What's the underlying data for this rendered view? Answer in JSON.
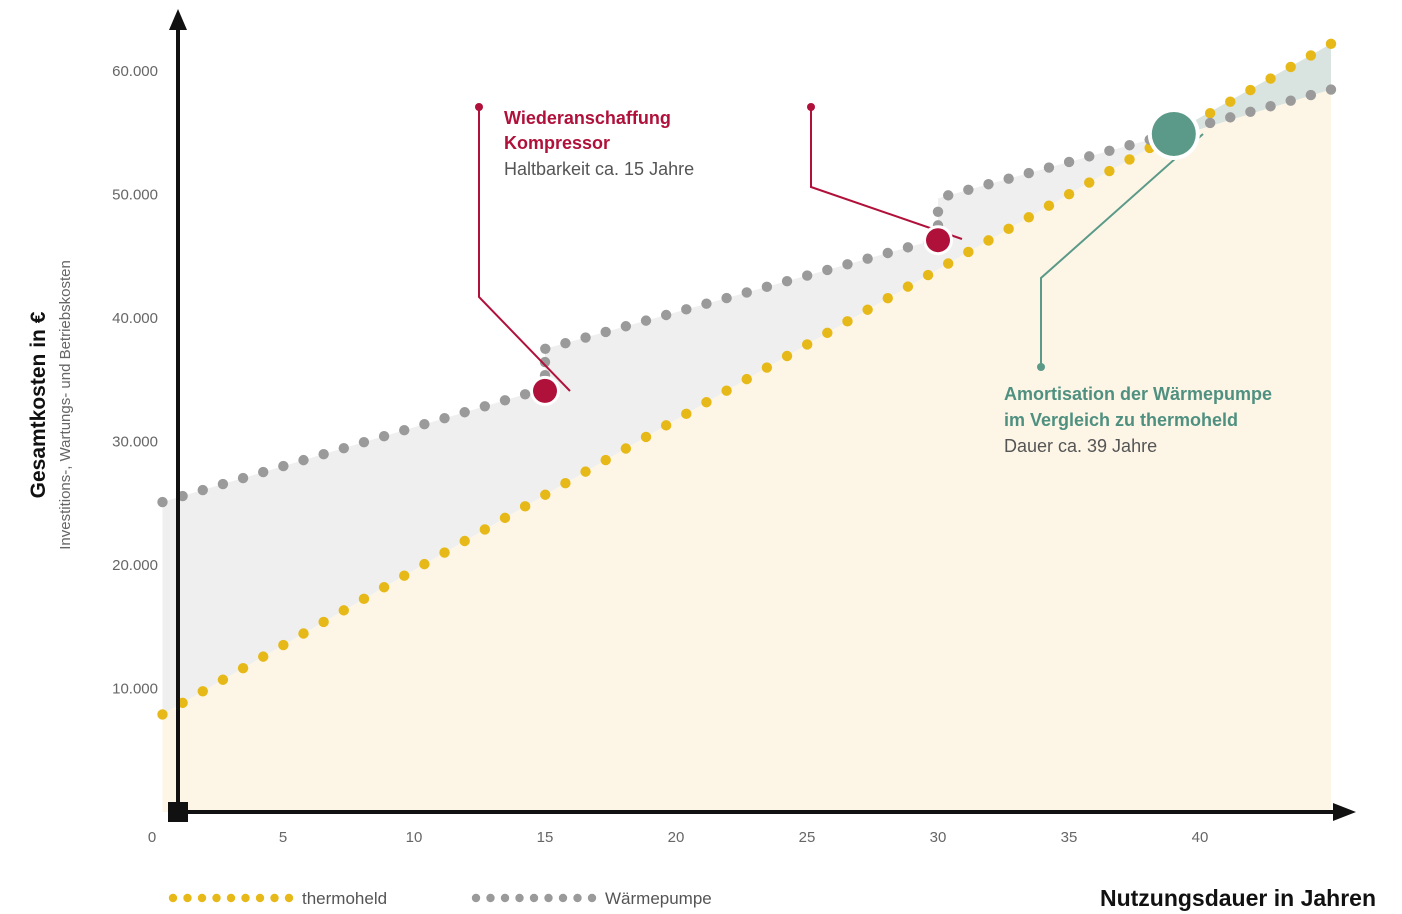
{
  "chart_data": {
    "type": "line",
    "xlabel": "Nutzungsdauer in Jahren",
    "ylabel": "Gesamtkosten in €",
    "ylabel_sub": "Investitions-, Wartungs- und Betriebskosten",
    "xlim": [
      0,
      45
    ],
    "ylim": [
      0,
      64000
    ],
    "x_ticks": [
      {
        "value": 0,
        "label": "0"
      },
      {
        "value": 5,
        "label": "5"
      },
      {
        "value": 10,
        "label": "10"
      },
      {
        "value": 15,
        "label": "15"
      },
      {
        "value": 20,
        "label": "20"
      },
      {
        "value": 25,
        "label": "25"
      },
      {
        "value": 30,
        "label": "30"
      },
      {
        "value": 35,
        "label": "35"
      },
      {
        "value": 40,
        "label": "40"
      }
    ],
    "y_ticks": [
      {
        "value": 10000,
        "label": "10.000"
      },
      {
        "value": 20000,
        "label": "20.000"
      },
      {
        "value": 30000,
        "label": "30.000"
      },
      {
        "value": 40000,
        "label": "40.000"
      },
      {
        "value": 50000,
        "label": "50.000"
      },
      {
        "value": 60000,
        "label": "60.000"
      }
    ],
    "series": [
      {
        "name": "thermoheld",
        "color": "#e6b918",
        "style": "dotted",
        "start": {
          "x": 0.4,
          "y": 7900
        },
        "end": {
          "x": 45,
          "y": 62200
        },
        "breaks": []
      },
      {
        "name": "Wärmepumpe",
        "color": "#9a9a9a",
        "style": "dotted",
        "start": {
          "x": 0.4,
          "y": 25100
        },
        "end": {
          "x": 45,
          "y": 58500
        },
        "breaks": [
          {
            "x": 15,
            "from": 34300,
            "to": 37500
          },
          {
            "x": 30,
            "from": 46400,
            "to": 49700
          }
        ]
      }
    ],
    "markers": [
      {
        "name": "kompressor-15",
        "x": 15,
        "y": 34100,
        "color": "#b0113a"
      },
      {
        "name": "kompressor-30",
        "x": 30,
        "y": 46300,
        "color": "#b0113a"
      },
      {
        "name": "amortisation",
        "x": 39,
        "y": 54900,
        "color": "#5b9a88"
      }
    ],
    "annotations": [
      {
        "title_lines": [
          "Wiederanschaffung",
          "Kompressor"
        ],
        "subtitle": "Haltbarkeit ca. 15 Jahre",
        "color": "#b0113a"
      },
      {
        "title_lines": [
          "Amortisation der Wärmepumpe",
          "im Vergleich zu thermoheld"
        ],
        "subtitle": "Dauer ca. 39 Jahre",
        "color": "#4f9080"
      }
    ],
    "areas": [
      {
        "between": [
          "Wärmepumpe",
          "thermoheld"
        ],
        "color": "#eeeeee"
      },
      {
        "under": "thermoheld",
        "color": "#fdf6e7"
      }
    ],
    "legend_position": "bottom-left",
    "grid": false
  }
}
